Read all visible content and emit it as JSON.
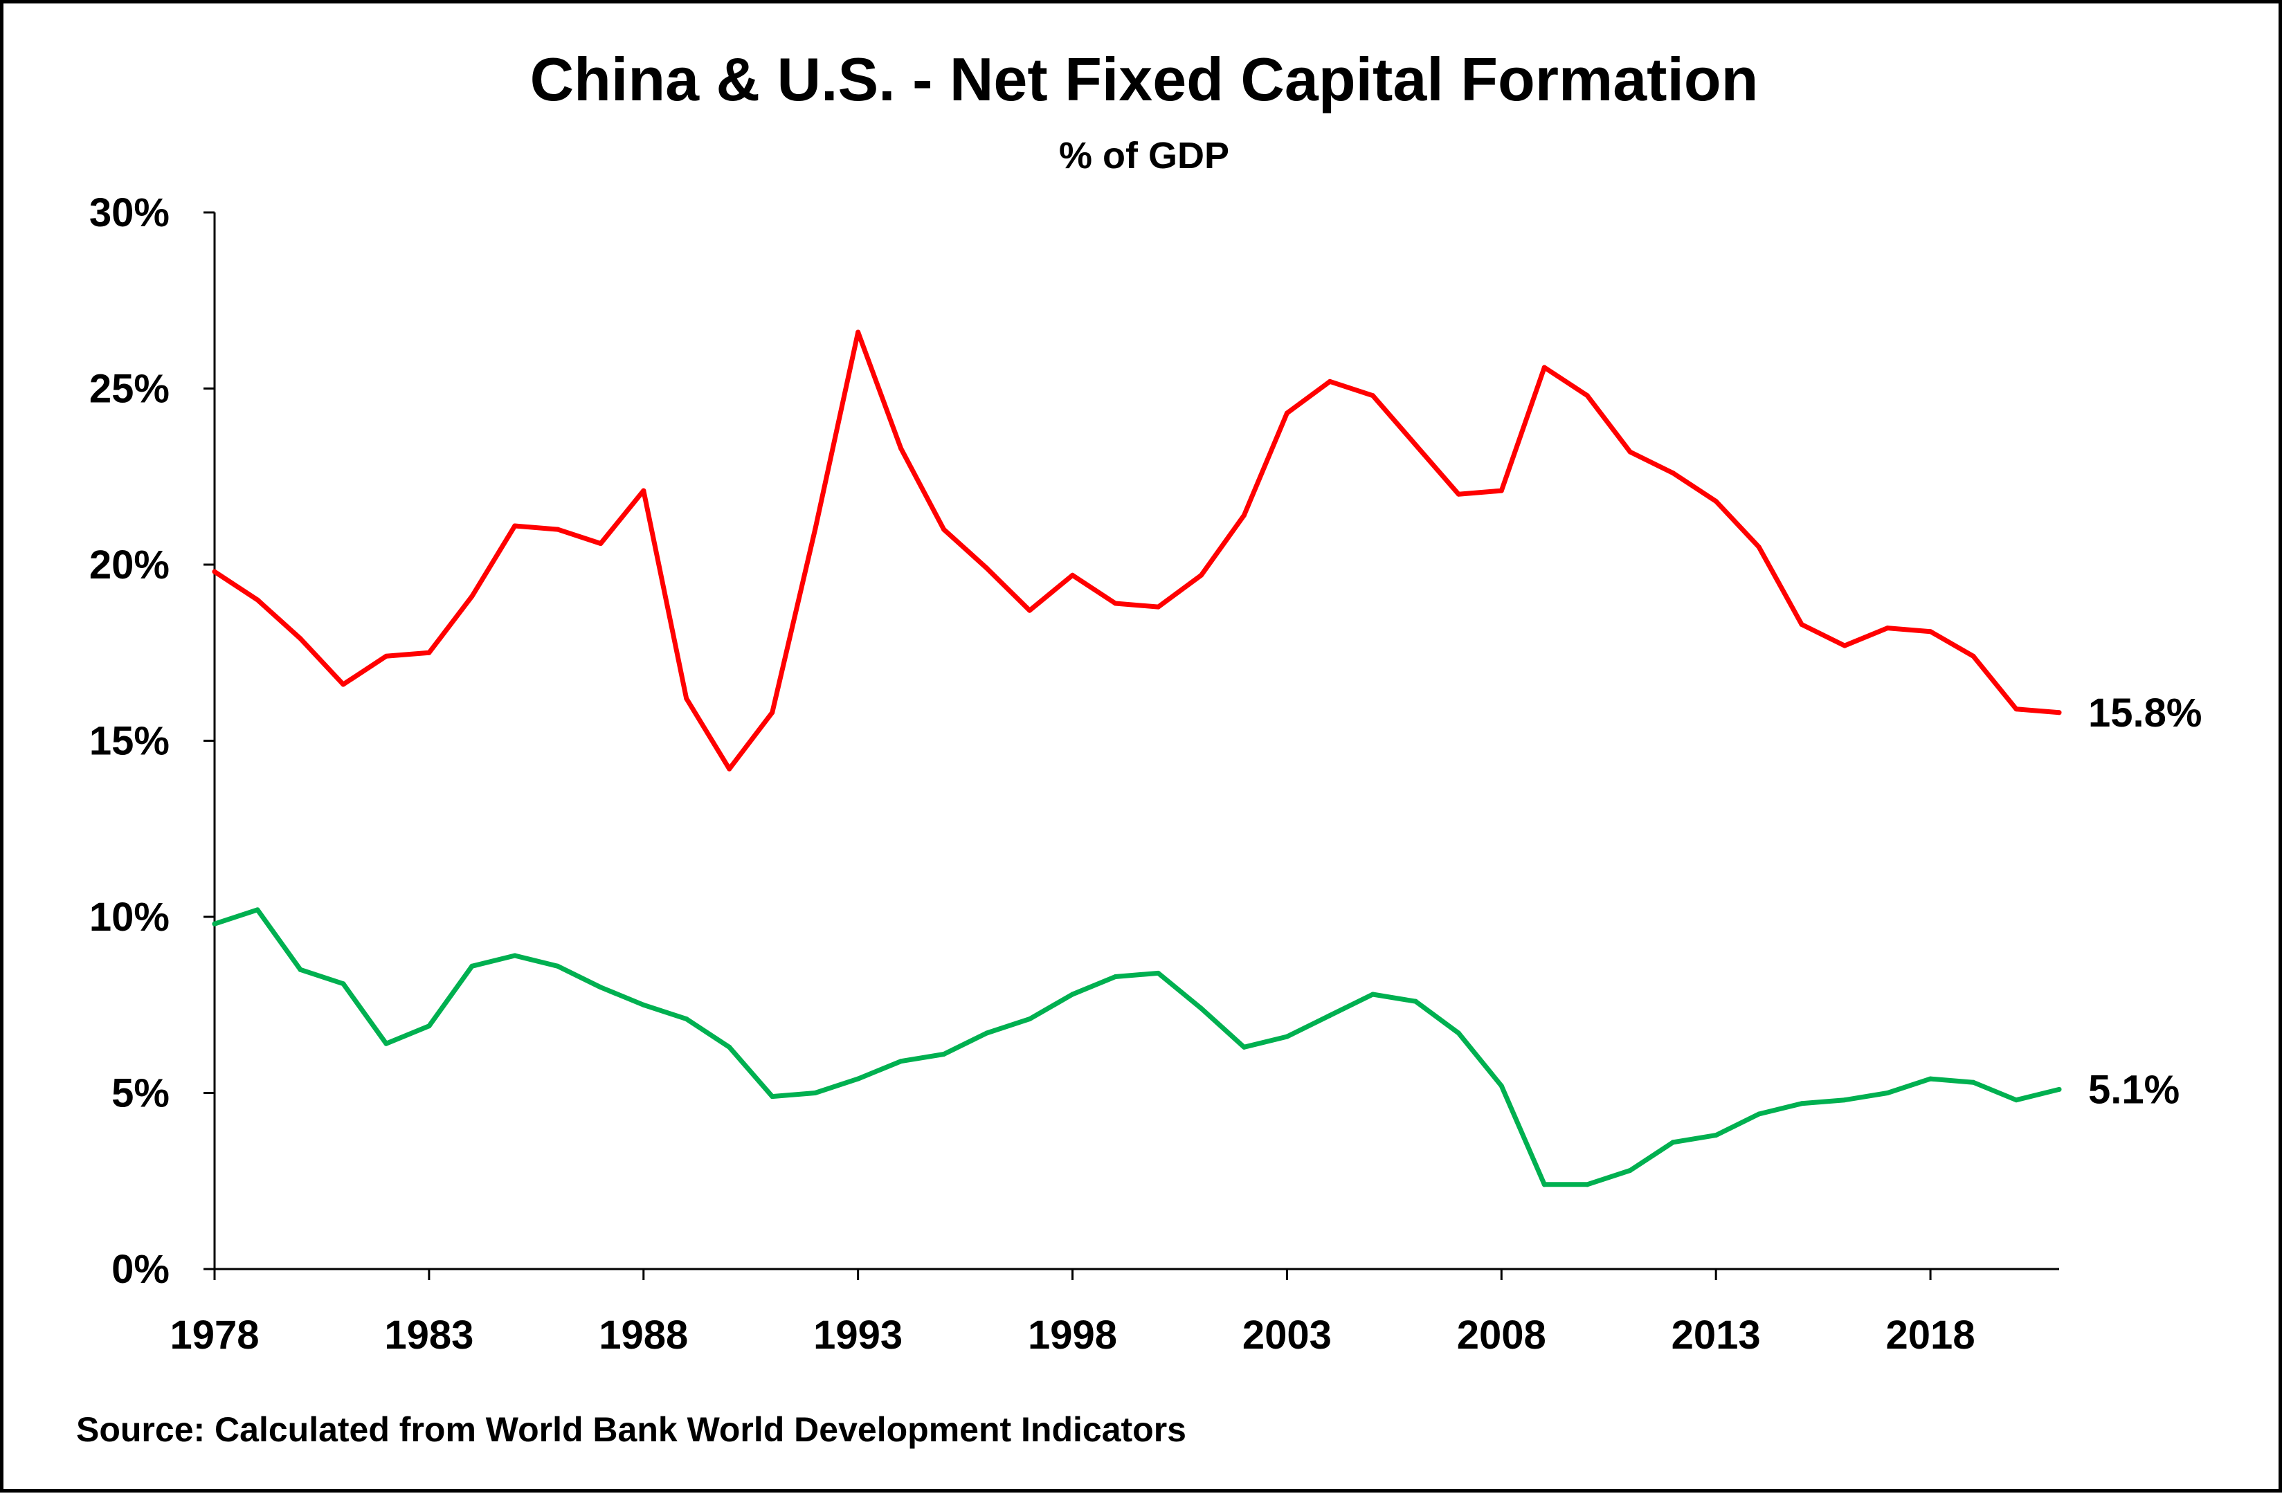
{
  "chart_data": {
    "type": "line",
    "title": "China & U.S. - Net Fixed Capital Formation",
    "subtitle": "% of GDP",
    "xlabel": "",
    "ylabel": "",
    "xlim": [
      1978,
      2021
    ],
    "ylim": [
      0,
      30
    ],
    "x_tick_labels": [
      "1978",
      "1983",
      "1988",
      "1993",
      "1998",
      "2003",
      "2008",
      "2013",
      "2018"
    ],
    "y_tick_labels": [
      "0%",
      "5%",
      "10%",
      "15%",
      "20%",
      "25%",
      "30%"
    ],
    "grid": false,
    "legend": "none",
    "x": [
      1978,
      1979,
      1980,
      1981,
      1982,
      1983,
      1984,
      1985,
      1986,
      1987,
      1988,
      1989,
      1990,
      1991,
      1992,
      1993,
      1994,
      1995,
      1996,
      1997,
      1998,
      1999,
      2000,
      2001,
      2002,
      2003,
      2004,
      2005,
      2006,
      2007,
      2008,
      2009,
      2010,
      2011,
      2012,
      2013,
      2014,
      2015,
      2016,
      2017,
      2018,
      2019,
      2020,
      2021
    ],
    "series": [
      {
        "name": "China",
        "color": "#ff0000",
        "end_label": "15.8%",
        "values": [
          19.8,
          19.0,
          17.9,
          16.6,
          17.4,
          17.5,
          19.1,
          21.1,
          21.0,
          20.6,
          22.1,
          16.2,
          14.2,
          15.8,
          21.0,
          26.6,
          23.3,
          21.0,
          19.9,
          18.7,
          19.7,
          18.9,
          18.8,
          19.7,
          21.4,
          24.3,
          25.2,
          24.8,
          23.4,
          22.0,
          22.1,
          25.6,
          24.8,
          23.2,
          22.6,
          21.8,
          20.5,
          18.3,
          17.7,
          18.2,
          18.1,
          17.4,
          15.9,
          15.8
        ]
      },
      {
        "name": "U.S.",
        "color": "#00b050",
        "end_label": "5.1%",
        "values": [
          9.8,
          10.2,
          8.5,
          8.1,
          6.4,
          6.9,
          8.6,
          8.9,
          8.6,
          8.0,
          7.5,
          7.1,
          6.3,
          4.9,
          5.0,
          5.4,
          5.9,
          6.1,
          6.7,
          7.1,
          7.8,
          8.3,
          8.4,
          7.4,
          6.3,
          6.6,
          7.2,
          7.8,
          7.6,
          6.7,
          5.2,
          2.4,
          2.4,
          2.8,
          3.6,
          3.8,
          4.4,
          4.7,
          4.8,
          5.0,
          5.4,
          5.3,
          4.8,
          5.1
        ]
      }
    ],
    "source": "Source:  Calculated from World Bank World Development Indicators"
  }
}
